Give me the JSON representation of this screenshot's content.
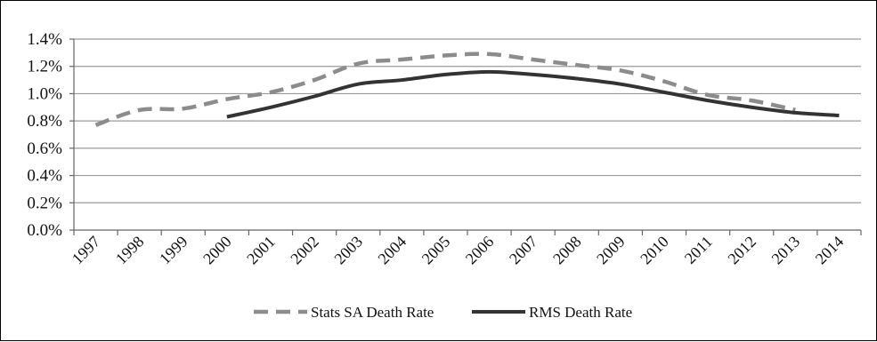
{
  "chart_data": {
    "type": "line",
    "title": "",
    "xlabel": "",
    "ylabel": "",
    "ylim": [
      0,
      1.4
    ],
    "y_tick_labels": [
      "0.0%",
      "0.2%",
      "0.4%",
      "0.6%",
      "0.8%",
      "1.0%",
      "1.2%",
      "1.4%"
    ],
    "y_tick_values": [
      0,
      0.2,
      0.4,
      0.6,
      0.8,
      1.0,
      1.2,
      1.4
    ],
    "categories": [
      "1997",
      "1998",
      "1999",
      "2000",
      "2001",
      "2002",
      "2003",
      "2004",
      "2005",
      "2006",
      "2007",
      "2008",
      "2009",
      "2010",
      "2011",
      "2012",
      "2013",
      "2014"
    ],
    "grid": "horizontal",
    "legend_position": "bottom",
    "series": [
      {
        "name": "Stats SA Death Rate",
        "style": "dashed",
        "color": "#8c8c8c",
        "values": [
          0.77,
          0.88,
          0.89,
          0.96,
          1.01,
          1.1,
          1.22,
          1.25,
          1.28,
          1.29,
          1.25,
          1.21,
          1.17,
          1.09,
          0.99,
          0.95,
          0.88,
          null
        ]
      },
      {
        "name": "RMS Death Rate",
        "style": "solid",
        "color": "#333333",
        "values": [
          null,
          null,
          null,
          0.83,
          0.9,
          0.98,
          1.07,
          1.1,
          1.14,
          1.16,
          1.14,
          1.11,
          1.07,
          1.01,
          0.95,
          0.9,
          0.86,
          0.84
        ]
      }
    ]
  }
}
